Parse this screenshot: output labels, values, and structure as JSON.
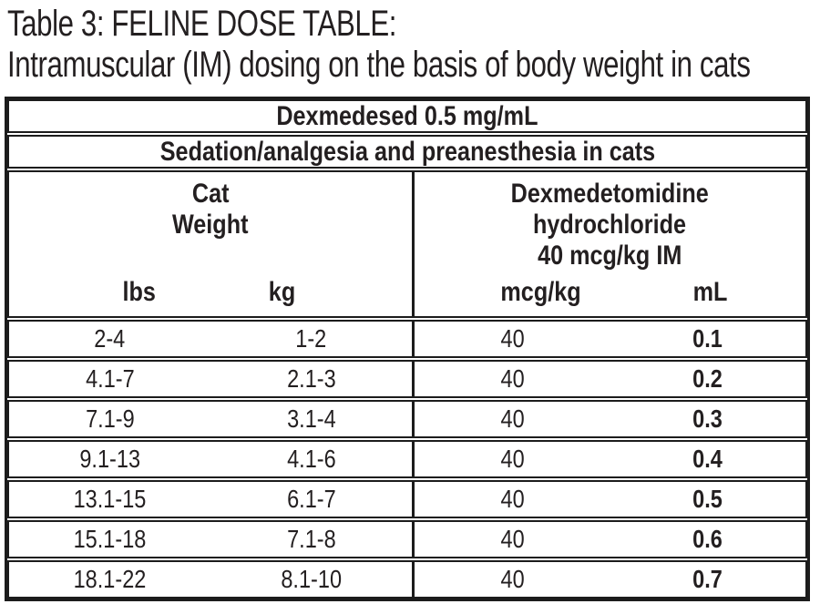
{
  "title": {
    "line1": "Table 3: FELINE DOSE TABLE:",
    "line2": "Intramuscular (IM) dosing on the basis of body weight in cats"
  },
  "table": {
    "product_header": "Dexmedesed 0.5 mg/mL",
    "indication_header": "Sedation/analgesia and preanesthesia in cats",
    "weight_group": {
      "lines": [
        "Cat",
        "Weight"
      ],
      "columns": [
        "lbs",
        "kg"
      ]
    },
    "dose_group": {
      "lines": [
        "Dexmedetomidine",
        "hydrochloride",
        "40 mcg/kg IM"
      ],
      "columns": [
        "mcg/kg",
        "mL"
      ]
    },
    "rows": [
      {
        "lbs": "2-4",
        "kg": "1-2",
        "mcg_kg": "40",
        "ml": "0.1"
      },
      {
        "lbs": "4.1-7",
        "kg": "2.1-3",
        "mcg_kg": "40",
        "ml": "0.2"
      },
      {
        "lbs": "7.1-9",
        "kg": "3.1-4",
        "mcg_kg": "40",
        "ml": "0.3"
      },
      {
        "lbs": "9.1-13",
        "kg": "4.1-6",
        "mcg_kg": "40",
        "ml": "0.4"
      },
      {
        "lbs": "13.1-15",
        "kg": "6.1-7",
        "mcg_kg": "40",
        "ml": "0.5"
      },
      {
        "lbs": "15.1-18",
        "kg": "7.1-8",
        "mcg_kg": "40",
        "ml": "0.6"
      },
      {
        "lbs": "18.1-22",
        "kg": "8.1-10",
        "mcg_kg": "40",
        "ml": "0.7"
      }
    ],
    "colors": {
      "text": "#231f20",
      "border": "#1c1c1c",
      "background": "#ffffff"
    }
  }
}
